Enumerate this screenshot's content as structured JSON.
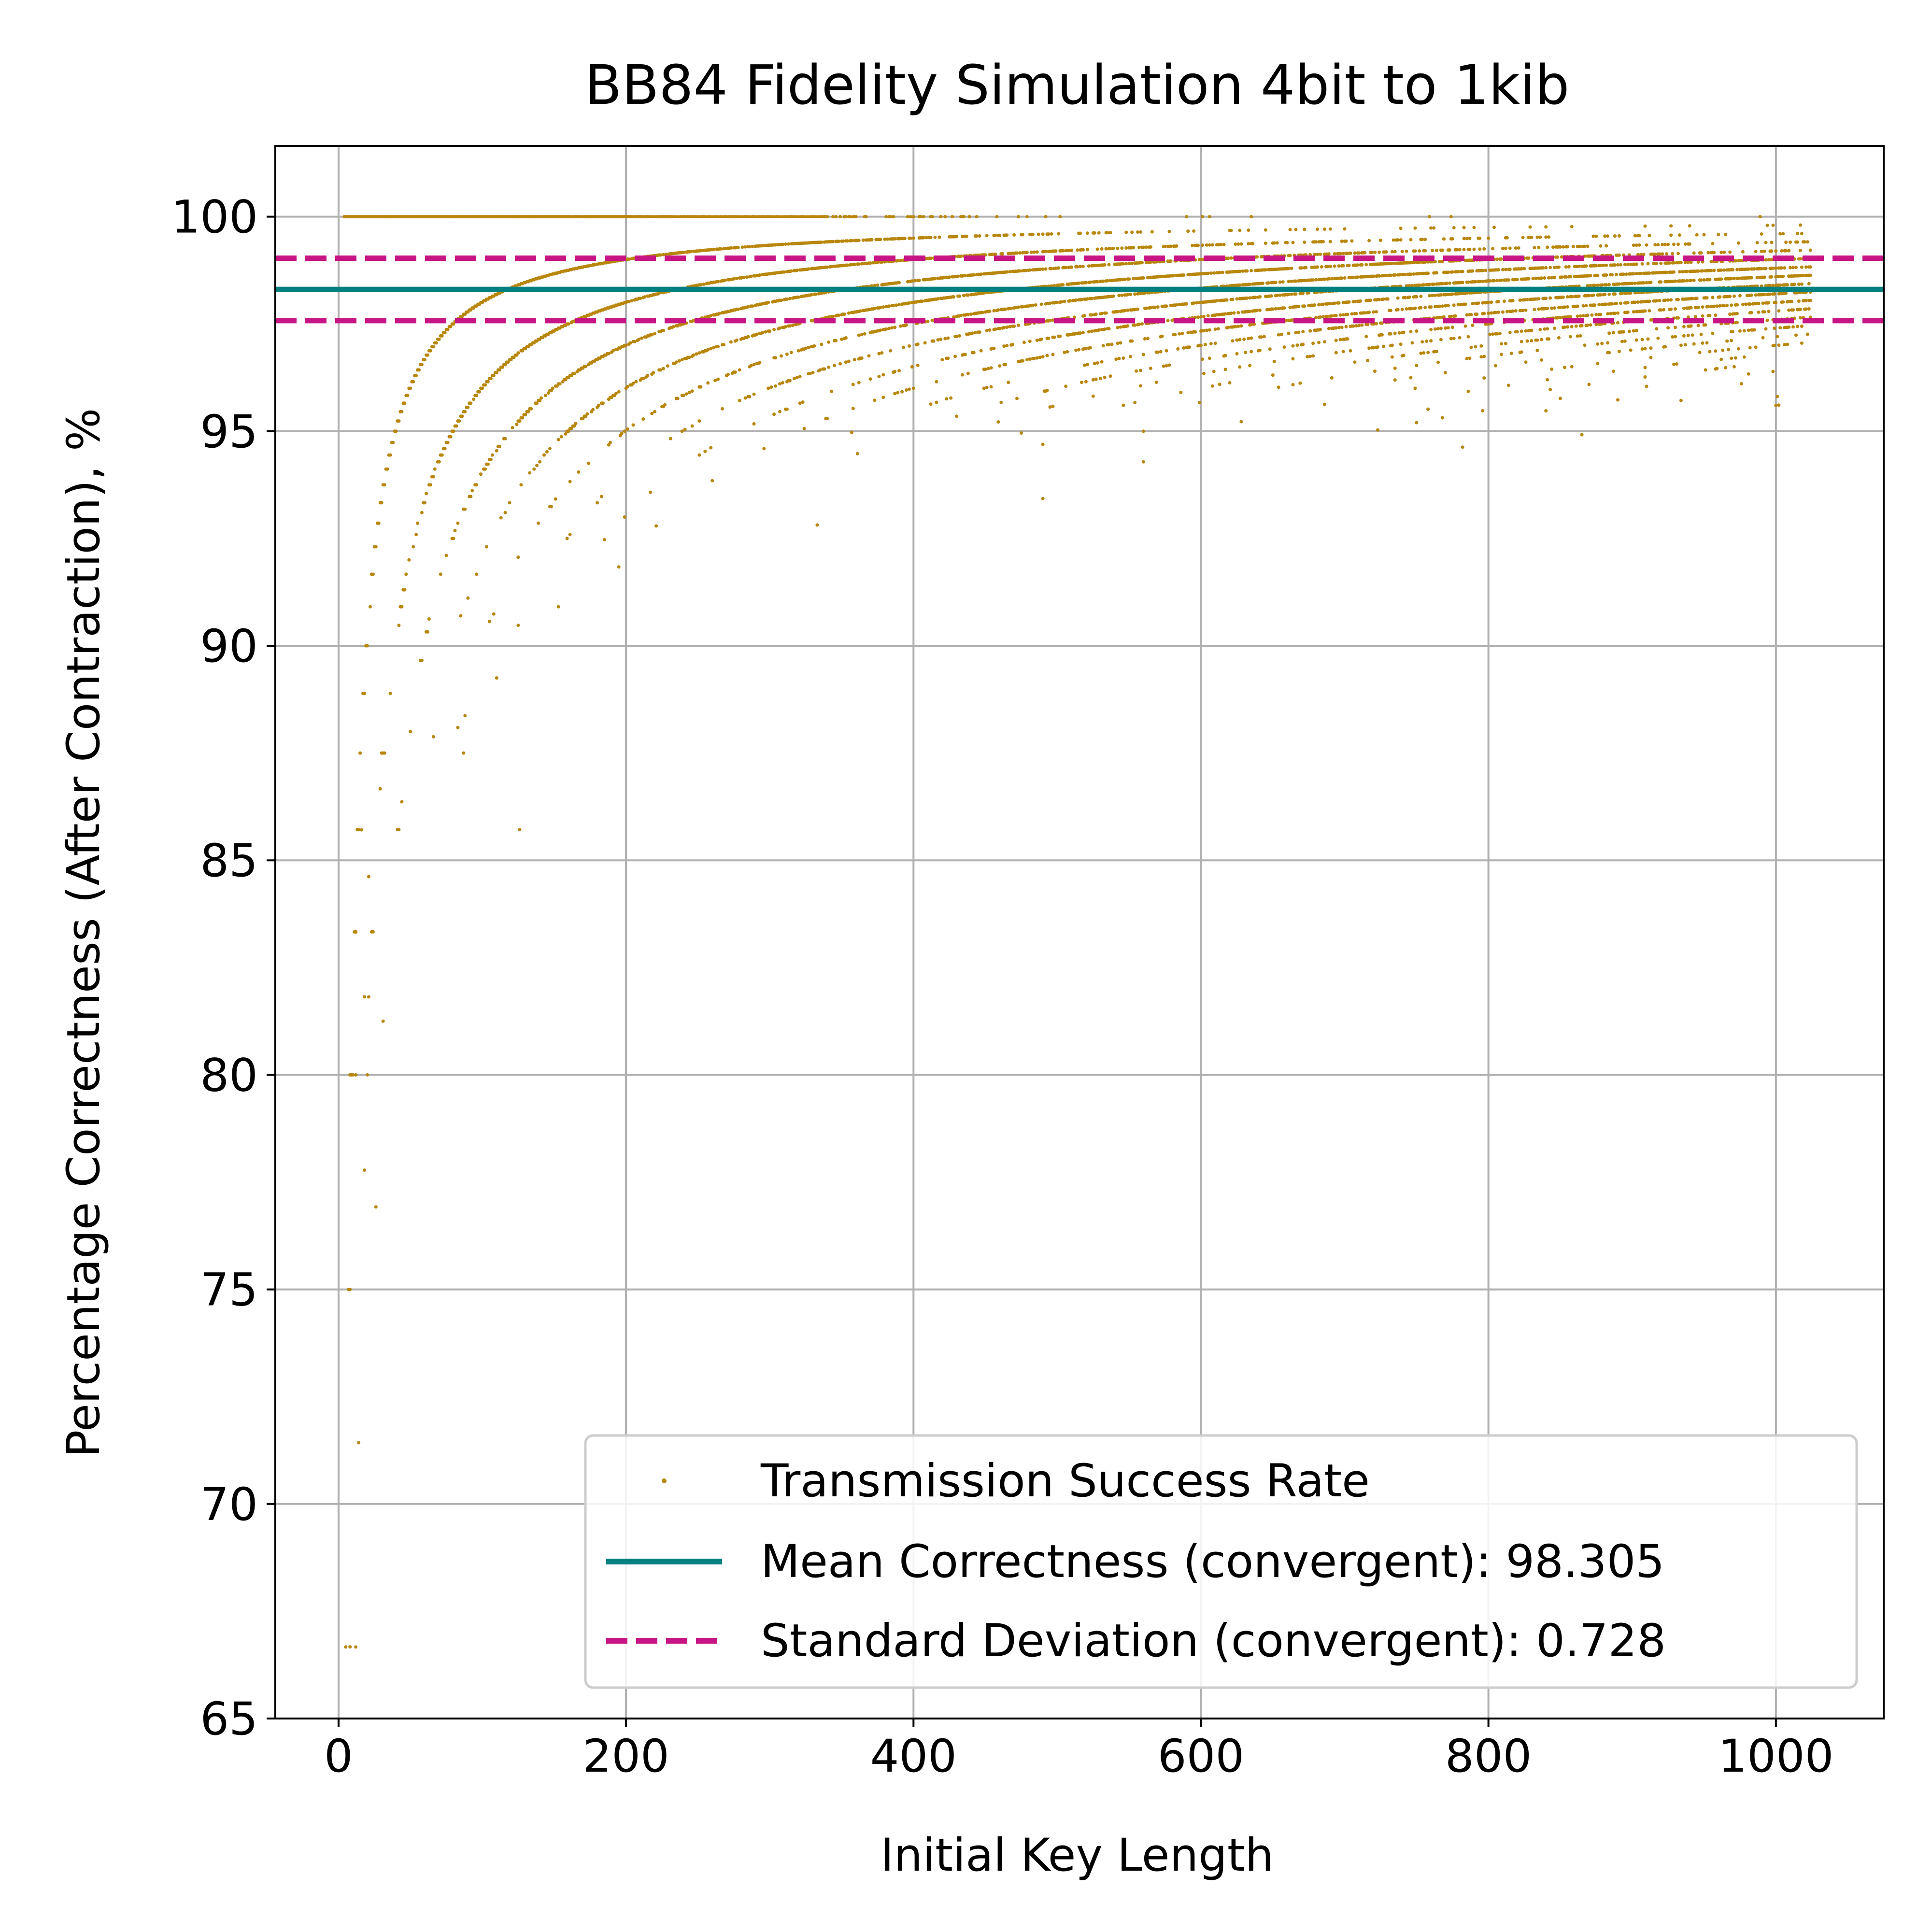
{
  "chart_data": {
    "type": "scatter",
    "title": "BB84 Fidelity Simulation 4bit to 1kib",
    "xlabel": "Initial Key Length",
    "ylabel": "Percentage Correctness (After Contraction), %",
    "xlim": [
      -44,
      1075
    ],
    "ylim": [
      65,
      101.65
    ],
    "xticks": [
      0,
      200,
      400,
      600,
      800,
      1000
    ],
    "yticks": [
      65,
      70,
      75,
      80,
      85,
      90,
      95,
      100
    ],
    "grid": true,
    "legend_position": "lower-right",
    "colors": {
      "scatter": "#b8860b",
      "mean": "#008080",
      "std": "#c71585",
      "grid": "#b0b0b0"
    },
    "scatter_series": {
      "name": "Transmission Success Rate",
      "x_range": [
        4,
        1024
      ],
      "points_per_x": 40,
      "upper_bound": 100,
      "converged_band": [
        97.0,
        99.5
      ],
      "sample_outliers": [
        {
          "x": 8,
          "y": 66.67
        },
        {
          "x": 8,
          "y": 75.0
        },
        {
          "x": 8,
          "y": 80.0
        },
        {
          "x": 12,
          "y": 80.0
        },
        {
          "x": 18,
          "y": 77.78
        },
        {
          "x": 18,
          "y": 81.82
        },
        {
          "x": 21,
          "y": 84.62
        },
        {
          "x": 12,
          "y": 83.33
        },
        {
          "x": 16,
          "y": 85.71
        },
        {
          "x": 30,
          "y": 87.5
        },
        {
          "x": 87,
          "y": 87.5
        },
        {
          "x": 88,
          "y": 88.37
        },
        {
          "x": 110,
          "y": 89.25
        },
        {
          "x": 58,
          "y": 89.66
        },
        {
          "x": 490,
          "y": 93.43
        },
        {
          "x": 1000,
          "y": 95.6
        }
      ]
    },
    "mean_line": {
      "name": "Mean Correctness (convergent): 98.305",
      "value": 98.305
    },
    "std_lines": {
      "name": "Standard Deviation (convergent): 0.728",
      "upper": 99.033,
      "lower": 97.577
    }
  }
}
